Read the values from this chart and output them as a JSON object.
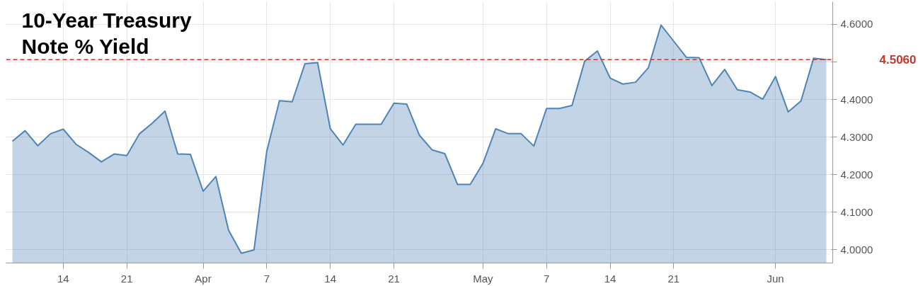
{
  "chart_data": {
    "type": "area",
    "title": "10-Year Treasury\nNote % Yield",
    "categories": [
      null,
      null,
      null,
      null,
      "14",
      null,
      null,
      null,
      null,
      "21",
      null,
      null,
      null,
      null,
      null,
      "Apr",
      null,
      null,
      null,
      null,
      "7",
      null,
      null,
      null,
      null,
      "14",
      null,
      null,
      null,
      null,
      "21",
      null,
      null,
      null,
      null,
      null,
      null,
      "May",
      null,
      null,
      null,
      null,
      "7",
      null,
      null,
      null,
      null,
      "14",
      null,
      null,
      null,
      null,
      "21",
      null,
      null,
      null,
      null,
      null,
      null,
      null,
      "Jun",
      null,
      null,
      null,
      null
    ],
    "series": [
      {
        "color": "#4f84b4",
        "values": [
          4.289,
          4.317,
          4.277,
          4.309,
          4.321,
          4.281,
          4.259,
          4.234,
          4.255,
          4.251,
          4.309,
          4.337,
          4.369,
          4.255,
          4.254,
          4.156,
          4.195,
          4.052,
          3.991,
          4.0,
          4.262,
          4.397,
          4.394,
          4.495,
          4.498,
          4.322,
          4.279,
          4.334,
          4.334,
          4.334,
          4.39,
          4.388,
          4.305,
          4.266,
          4.256,
          4.174,
          4.174,
          4.23,
          4.322,
          4.309,
          4.309,
          4.276,
          4.376,
          4.376,
          4.384,
          4.502,
          4.529,
          4.457,
          4.441,
          4.446,
          4.484,
          4.598,
          4.555,
          4.512,
          4.511,
          4.437,
          4.48,
          4.426,
          4.42,
          4.401,
          4.461,
          4.367,
          4.396,
          4.51,
          4.506
        ]
      }
    ],
    "ylim": [
      3.965,
      4.66
    ],
    "yticks": [
      {
        "value": 4.0,
        "label": "4.0000"
      },
      {
        "value": 4.1,
        "label": "4.1000"
      },
      {
        "value": 4.2,
        "label": "4.2000"
      },
      {
        "value": 4.3,
        "label": "4.3000"
      },
      {
        "value": 4.4,
        "label": "4.4000"
      },
      {
        "value": 4.5,
        "label": null
      },
      {
        "value": 4.6,
        "label": "4.6000"
      }
    ],
    "ref_lines": [
      {
        "axis": "y",
        "value": 4.506,
        "label": "4.5060",
        "color": "#c0392b",
        "line_style": "dashed"
      }
    ],
    "grid": true
  }
}
